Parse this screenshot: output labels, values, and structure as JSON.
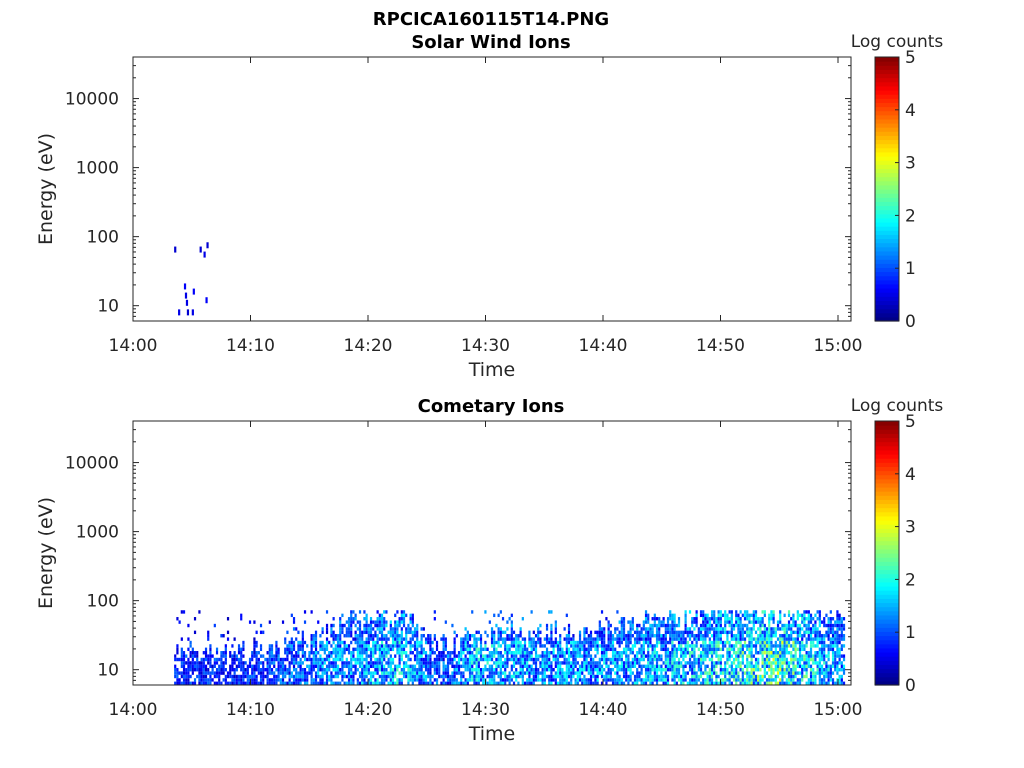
{
  "figure_title": "RPCICA160115T14.PNG",
  "chart_data": [
    {
      "type": "heatmap",
      "title": "Solar Wind Ions",
      "xlabel": "Time",
      "ylabel": "Energy (eV)",
      "x_ticks": [
        "14:00",
        "14:10",
        "14:20",
        "14:30",
        "14:40",
        "14:50",
        "15:00"
      ],
      "xlim": [
        "14:00",
        "15:00"
      ],
      "y_scale": "log",
      "y_ticks": [
        10,
        100,
        1000,
        10000
      ],
      "y_tick_labels": [
        "10",
        "100",
        "1000",
        "10000"
      ],
      "ylim": [
        6,
        40000
      ],
      "colorbar": {
        "label": "Log counts",
        "min": 0,
        "max": 5,
        "ticks": [
          "0",
          "1",
          "2",
          "3",
          "4",
          "5"
        ],
        "colormap": "jet"
      },
      "points": [
        {
          "t": "14:03:30",
          "e": 65,
          "v": 0.4
        },
        {
          "t": "14:03:50",
          "e": 8,
          "v": 0.5
        },
        {
          "t": "14:04:20",
          "e": 19,
          "v": 0.6
        },
        {
          "t": "14:04:25",
          "e": 14,
          "v": 0.5
        },
        {
          "t": "14:04:30",
          "e": 11,
          "v": 0.5
        },
        {
          "t": "14:04:35",
          "e": 8,
          "v": 0.4
        },
        {
          "t": "14:05:00",
          "e": 8,
          "v": 0.5
        },
        {
          "t": "14:05:05",
          "e": 16,
          "v": 0.6
        },
        {
          "t": "14:05:40",
          "e": 65,
          "v": 0.4
        },
        {
          "t": "14:06:00",
          "e": 55,
          "v": 0.5
        },
        {
          "t": "14:06:10",
          "e": 12,
          "v": 0.6
        },
        {
          "t": "14:06:15",
          "e": 75,
          "v": 0.4
        }
      ]
    },
    {
      "type": "heatmap",
      "title": "Cometary Ions",
      "xlabel": "Time",
      "ylabel": "Energy (eV)",
      "x_ticks": [
        "14:00",
        "14:10",
        "14:20",
        "14:30",
        "14:40",
        "14:50",
        "15:00"
      ],
      "xlim": [
        "14:00",
        "15:00"
      ],
      "y_scale": "log",
      "y_ticks": [
        10,
        100,
        1000,
        10000
      ],
      "y_tick_labels": [
        "10",
        "100",
        "1000",
        "10000"
      ],
      "ylim": [
        6,
        40000
      ],
      "colorbar": {
        "label": "Log counts",
        "min": 0,
        "max": 5,
        "ticks": [
          "0",
          "1",
          "2",
          "3",
          "4",
          "5"
        ],
        "colormap": "jet"
      },
      "data_range": {
        "t_start": "14:03:30",
        "t_end": "15:00:30",
        "e_min": 6,
        "e_max": 80
      },
      "intensity_profile": [
        {
          "t": "14:04",
          "e_top": 20,
          "v": 1.0
        },
        {
          "t": "14:10",
          "e_top": 22,
          "v": 1.0
        },
        {
          "t": "14:16",
          "e_top": 35,
          "v": 1.5
        },
        {
          "t": "14:19",
          "e_top": 80,
          "v": 1.6
        },
        {
          "t": "14:23",
          "e_top": 70,
          "v": 2.0
        },
        {
          "t": "14:26",
          "e_top": 25,
          "v": 1.2
        },
        {
          "t": "14:29",
          "e_top": 40,
          "v": 1.9
        },
        {
          "t": "14:35",
          "e_top": 40,
          "v": 1.6
        },
        {
          "t": "14:41",
          "e_top": 45,
          "v": 1.7
        },
        {
          "t": "14:45",
          "e_top": 80,
          "v": 1.8
        },
        {
          "t": "14:50",
          "e_top": 80,
          "v": 2.1
        },
        {
          "t": "14:55",
          "e_top": 80,
          "v": 2.6
        },
        {
          "t": "15:00",
          "e_top": 80,
          "v": 1.6
        }
      ]
    }
  ]
}
